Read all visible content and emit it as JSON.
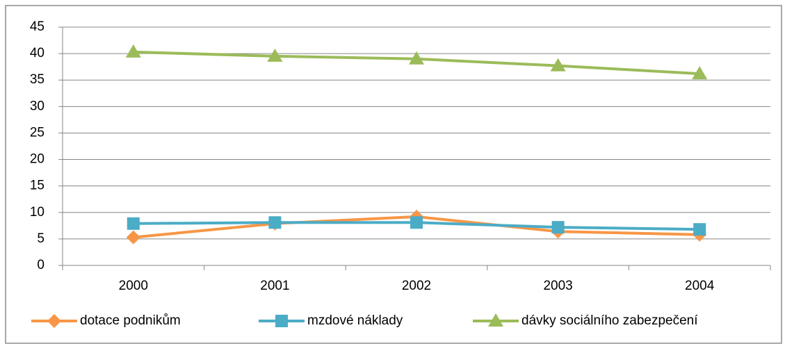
{
  "chart_data": {
    "type": "line",
    "categories": [
      "2000",
      "2001",
      "2002",
      "2003",
      "2004"
    ],
    "series": [
      {
        "name": "dotace podnikům",
        "color": "#f79646",
        "marker": "diamond",
        "values": [
          5.3,
          7.9,
          9.2,
          6.4,
          5.8
        ]
      },
      {
        "name": "mzdové náklady",
        "color": "#4bacc6",
        "marker": "square",
        "values": [
          7.9,
          8.1,
          8.1,
          7.2,
          6.8
        ]
      },
      {
        "name": "dávky sociálního zabezpečení",
        "color": "#9bbb59",
        "marker": "triangle",
        "values": [
          40.3,
          39.5,
          39.0,
          37.7,
          36.2
        ]
      }
    ],
    "ylim": [
      0,
      45
    ],
    "yticks": [
      0,
      5,
      10,
      15,
      20,
      25,
      30,
      35,
      40,
      45
    ],
    "grid": true,
    "legend": "bottom"
  }
}
